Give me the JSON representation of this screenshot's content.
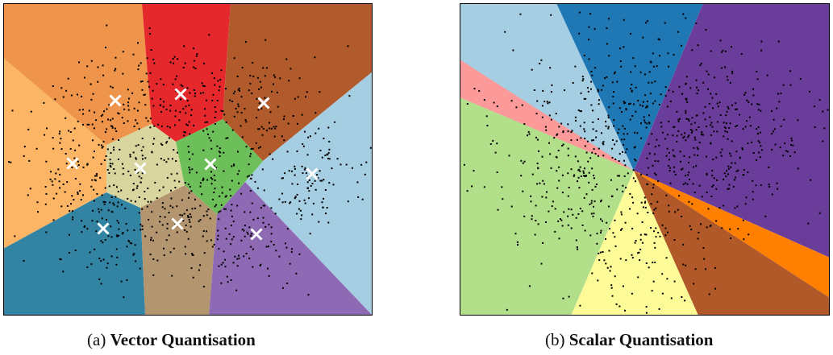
{
  "figures": [
    {
      "label": "(a)",
      "title": "Vector Quantisation",
      "region_colors": [
        "#fbb565",
        "#ee954b",
        "#e5282c",
        "#b15a2b",
        "#a6cee3",
        "#8e6ab4",
        "#b3956f",
        "#3384a3",
        "#d9d59e",
        "#6cbf59"
      ],
      "marker_color": "#ffffff",
      "centroid_count": 10
    },
    {
      "label": "(b)",
      "title": "Scalar Quantisation",
      "region_colors": [
        "#a6cee3",
        "#1f78b4",
        "#6a3d9a",
        "#ff7f00",
        "#b15928",
        "#fdfa98",
        "#b2df8a",
        "#fb9a99"
      ]
    }
  ]
}
